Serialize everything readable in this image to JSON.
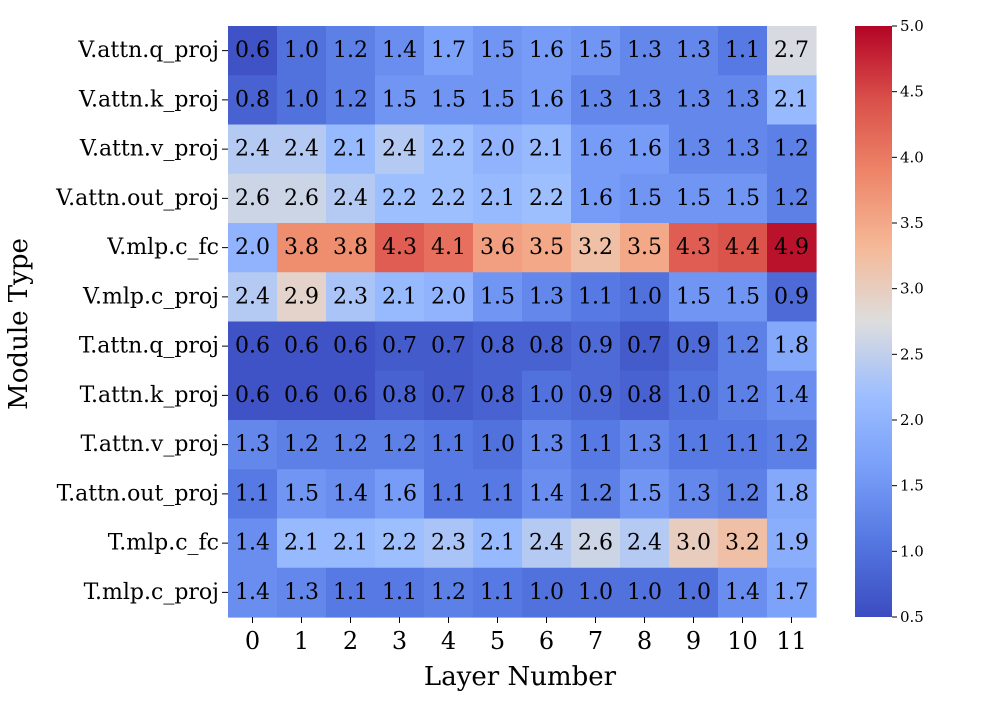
{
  "chart_data": {
    "type": "heatmap",
    "xlabel": "Layer Number",
    "ylabel": "Module Type",
    "x_categories": [
      "0",
      "1",
      "2",
      "3",
      "4",
      "5",
      "6",
      "7",
      "8",
      "9",
      "10",
      "11"
    ],
    "y_categories": [
      "V.attn.q_proj",
      "V.attn.k_proj",
      "V.attn.v_proj",
      "V.attn.out_proj",
      "V.mlp.c_fc",
      "V.mlp.c_proj",
      "T.attn.q_proj",
      "T.attn.k_proj",
      "T.attn.v_proj",
      "T.attn.out_proj",
      "T.mlp.c_fc",
      "T.mlp.c_proj"
    ],
    "values": [
      [
        0.6,
        1.0,
        1.2,
        1.4,
        1.7,
        1.5,
        1.6,
        1.5,
        1.3,
        1.3,
        1.1,
        2.7
      ],
      [
        0.8,
        1.0,
        1.2,
        1.5,
        1.5,
        1.5,
        1.6,
        1.3,
        1.3,
        1.3,
        1.3,
        2.1
      ],
      [
        2.4,
        2.4,
        2.1,
        2.4,
        2.2,
        2.0,
        2.1,
        1.6,
        1.6,
        1.3,
        1.3,
        1.2
      ],
      [
        2.6,
        2.6,
        2.4,
        2.2,
        2.2,
        2.1,
        2.2,
        1.6,
        1.5,
        1.5,
        1.5,
        1.2
      ],
      [
        2.0,
        3.8,
        3.8,
        4.3,
        4.1,
        3.6,
        3.5,
        3.2,
        3.5,
        4.3,
        4.4,
        4.9
      ],
      [
        2.4,
        2.9,
        2.3,
        2.1,
        2.0,
        1.5,
        1.3,
        1.1,
        1.0,
        1.5,
        1.5,
        0.9
      ],
      [
        0.6,
        0.6,
        0.6,
        0.7,
        0.7,
        0.8,
        0.8,
        0.9,
        0.7,
        0.9,
        1.2,
        1.8
      ],
      [
        0.6,
        0.6,
        0.6,
        0.8,
        0.7,
        0.8,
        1.0,
        0.9,
        0.8,
        1.0,
        1.2,
        1.4
      ],
      [
        1.3,
        1.2,
        1.2,
        1.2,
        1.1,
        1.0,
        1.3,
        1.1,
        1.3,
        1.1,
        1.1,
        1.2
      ],
      [
        1.1,
        1.5,
        1.4,
        1.6,
        1.1,
        1.1,
        1.4,
        1.2,
        1.5,
        1.3,
        1.2,
        1.8
      ],
      [
        1.4,
        2.1,
        2.1,
        2.2,
        2.3,
        2.1,
        2.4,
        2.6,
        2.4,
        3.0,
        3.2,
        1.9
      ],
      [
        1.4,
        1.3,
        1.1,
        1.1,
        1.2,
        1.1,
        1.0,
        1.0,
        1.0,
        1.0,
        1.4,
        1.7
      ]
    ],
    "colormap": "coolwarm",
    "vmin": 0.5,
    "vmax": 5.0,
    "colorbar_ticks": [
      "0.5",
      "1.0",
      "1.5",
      "2.0",
      "2.5",
      "3.0",
      "3.5",
      "4.0",
      "4.5",
      "5.0"
    ],
    "annotations_shown": true,
    "grid": false
  }
}
